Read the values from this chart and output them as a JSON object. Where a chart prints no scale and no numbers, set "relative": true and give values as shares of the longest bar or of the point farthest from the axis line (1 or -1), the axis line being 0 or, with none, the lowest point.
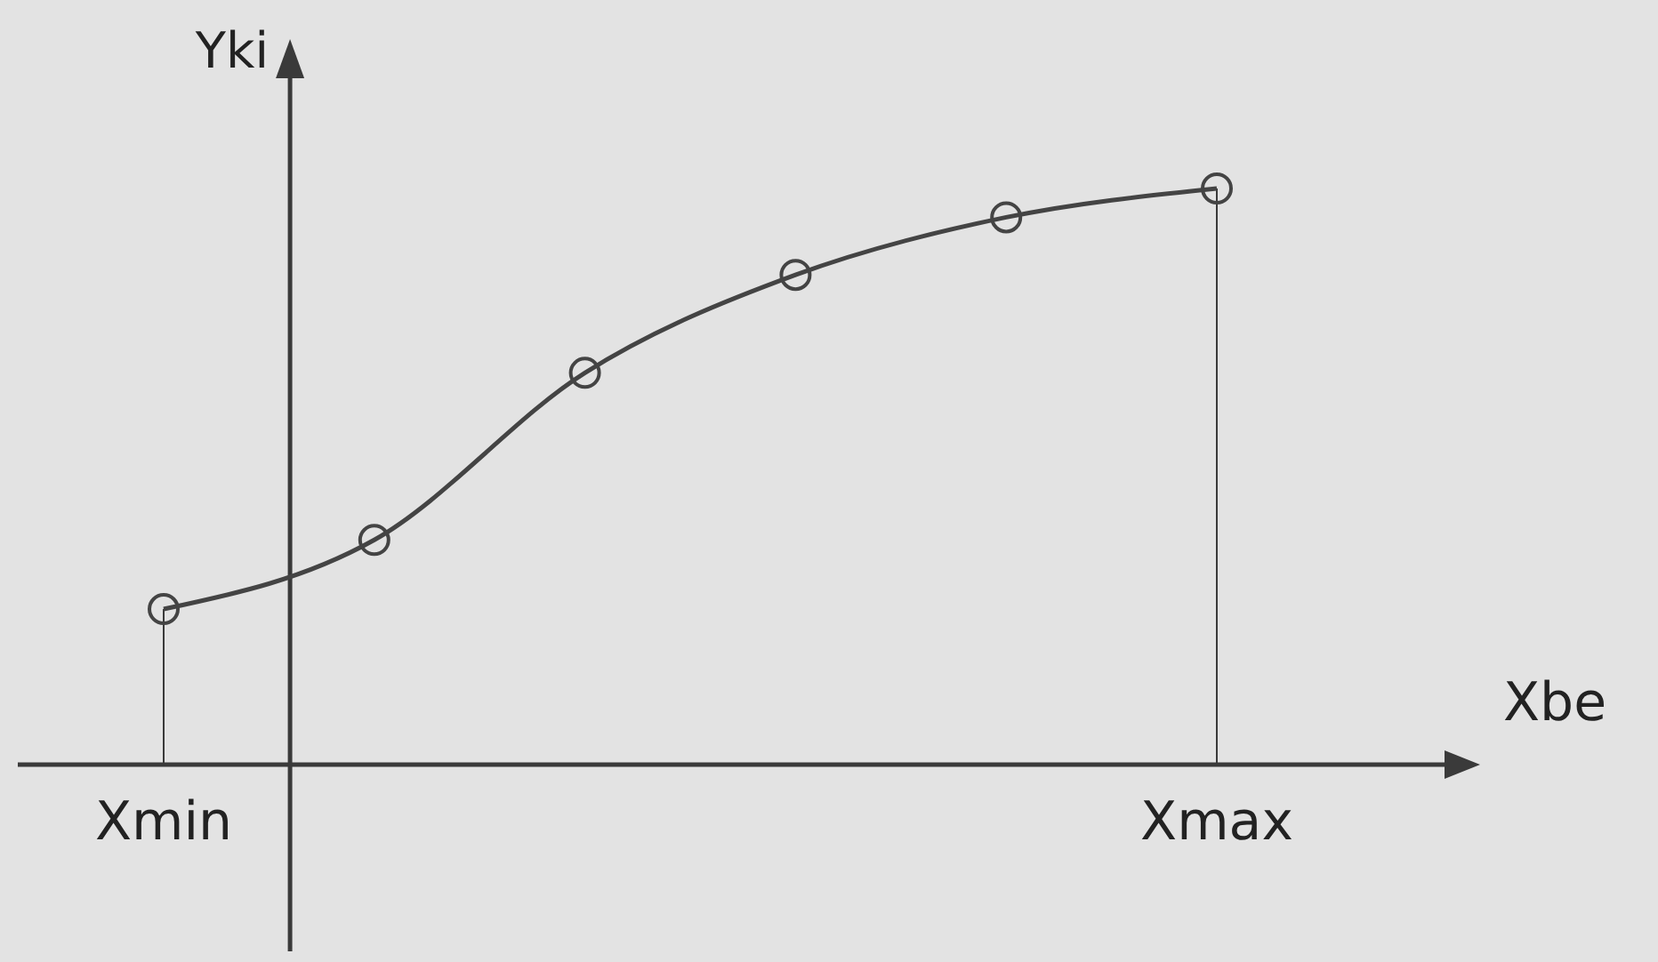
{
  "chart_data": {
    "type": "line",
    "xlabel": "Xbe",
    "ylabel": "Yki",
    "categories": [
      "Xmin",
      null,
      null,
      null,
      null,
      "Xmax"
    ],
    "values": [
      0.27,
      0.39,
      0.68,
      0.85,
      0.95,
      1
    ],
    "color": "#444444",
    "relative": true,
    "marker": "circle",
    "line_style": "solid",
    "ref_lines": [
      {
        "axis": "x",
        "value": "Xmin"
      },
      {
        "axis": "x",
        "value": "Xmax"
      }
    ]
  }
}
